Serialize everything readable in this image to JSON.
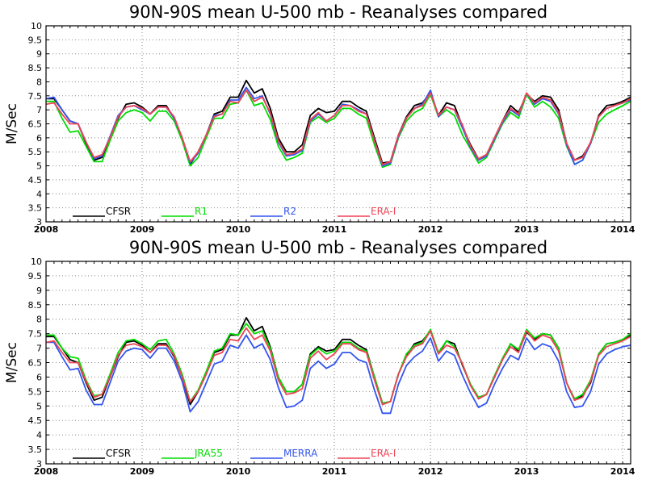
{
  "chart_data": [
    {
      "type": "line",
      "title": "90N-90S mean U-500 mb - Reanalyses compared",
      "ylabel": "M/Sec",
      "xlabel": "",
      "ylim": [
        3,
        10
      ],
      "xlim": [
        2008,
        2014.083
      ],
      "grid": true,
      "legend_placement": "bottom-left",
      "x_tick_labels": [
        "2008",
        "2009",
        "2010",
        "2011",
        "2012",
        "2013",
        "2014"
      ],
      "y_tick_labels": [
        "3",
        "3.5",
        "4",
        "4.5",
        "5",
        "5.5",
        "6",
        "6.5",
        "7",
        "7.5",
        "8",
        "8.5",
        "9",
        "9.5",
        "10"
      ],
      "x_start": "2008-01",
      "x_step": "1 month",
      "series": [
        {
          "name": "CFSR",
          "color": "#000000",
          "values": [
            7.4,
            7.4,
            7.0,
            6.6,
            6.5,
            5.8,
            5.2,
            5.3,
            6.0,
            6.7,
            7.2,
            7.25,
            7.1,
            6.85,
            7.15,
            7.15,
            6.7,
            6.0,
            5.05,
            5.5,
            6.1,
            6.85,
            6.95,
            7.45,
            7.45,
            8.05,
            7.6,
            7.75,
            7.05,
            6.0,
            5.5,
            5.5,
            5.75,
            6.8,
            7.05,
            6.9,
            6.95,
            7.3,
            7.3,
            7.1,
            6.95,
            6.0,
            5.1,
            5.15,
            6.1,
            6.75,
            7.15,
            7.25,
            7.6,
            6.8,
            7.25,
            7.15,
            6.4,
            5.75,
            5.25,
            5.4,
            6.0,
            6.6,
            7.15,
            6.9,
            7.55,
            7.3,
            7.5,
            7.45,
            7.0,
            5.8,
            5.2,
            5.35,
            5.8,
            6.8,
            7.15,
            7.2,
            7.3,
            7.45
          ]
        },
        {
          "name": "R1",
          "color": "#00dd00",
          "values": [
            7.3,
            7.3,
            6.7,
            6.2,
            6.25,
            5.7,
            5.15,
            5.15,
            5.9,
            6.6,
            6.9,
            7.0,
            6.9,
            6.6,
            6.95,
            6.95,
            6.6,
            5.9,
            5.0,
            5.3,
            6.0,
            6.7,
            6.7,
            7.2,
            7.25,
            7.7,
            7.15,
            7.25,
            6.65,
            5.7,
            5.2,
            5.3,
            5.45,
            6.55,
            6.75,
            6.55,
            6.7,
            7.05,
            7.05,
            6.85,
            6.7,
            5.75,
            4.95,
            5.05,
            6.0,
            6.6,
            6.9,
            7.05,
            7.55,
            6.75,
            7.0,
            6.8,
            6.1,
            5.6,
            5.1,
            5.3,
            5.9,
            6.5,
            6.9,
            6.7,
            7.55,
            7.1,
            7.3,
            7.1,
            6.7,
            5.7,
            5.05,
            5.2,
            5.8,
            6.55,
            6.85,
            7.0,
            7.15,
            7.3
          ]
        },
        {
          "name": "R2",
          "color": "#3355ee",
          "values": [
            7.4,
            7.45,
            7.0,
            6.6,
            6.5,
            5.85,
            5.25,
            5.35,
            6.05,
            6.8,
            7.1,
            7.15,
            7.0,
            6.85,
            7.1,
            7.1,
            6.7,
            6.0,
            5.1,
            5.45,
            6.1,
            6.8,
            6.85,
            7.35,
            7.35,
            7.8,
            7.4,
            7.5,
            6.85,
            5.85,
            5.35,
            5.4,
            5.55,
            6.6,
            6.85,
            6.6,
            6.8,
            7.2,
            7.15,
            7.0,
            6.85,
            5.9,
            5.0,
            5.1,
            6.05,
            6.7,
            7.05,
            7.2,
            7.7,
            6.75,
            7.1,
            7.0,
            6.35,
            5.65,
            5.2,
            5.35,
            5.95,
            6.55,
            7.0,
            6.8,
            7.6,
            7.2,
            7.4,
            7.3,
            6.85,
            5.75,
            5.05,
            5.2,
            5.8,
            6.75,
            7.05,
            7.15,
            7.25,
            7.35
          ]
        },
        {
          "name": "ERA-I",
          "color": "#ee4455",
          "values": [
            7.2,
            7.25,
            6.85,
            6.5,
            6.5,
            5.85,
            5.3,
            5.4,
            6.0,
            6.75,
            7.1,
            7.15,
            7.05,
            6.85,
            7.1,
            7.1,
            6.75,
            6.0,
            5.15,
            5.5,
            6.1,
            6.75,
            6.85,
            7.3,
            7.25,
            7.7,
            7.3,
            7.45,
            6.9,
            5.9,
            5.4,
            5.45,
            5.6,
            6.65,
            6.9,
            6.6,
            6.8,
            7.15,
            7.15,
            6.95,
            6.85,
            5.9,
            5.05,
            5.15,
            6.1,
            6.7,
            7.05,
            7.15,
            7.6,
            6.8,
            7.1,
            7.0,
            6.45,
            5.7,
            5.25,
            5.4,
            6.0,
            6.6,
            7.05,
            6.85,
            7.6,
            7.25,
            7.45,
            7.35,
            6.9,
            5.8,
            5.2,
            5.3,
            5.85,
            6.75,
            7.05,
            7.15,
            7.25,
            7.4
          ]
        }
      ]
    },
    {
      "type": "line",
      "title": "90N-90S mean U-500 mb - Reanalyses compared",
      "ylabel": "M/Sec",
      "xlabel": "",
      "ylim": [
        3,
        10
      ],
      "xlim": [
        2008,
        2014.083
      ],
      "grid": true,
      "legend_placement": "bottom-left",
      "x_tick_labels": [
        "2008",
        "2009",
        "2010",
        "2011",
        "2012",
        "2013",
        "2014"
      ],
      "y_tick_labels": [
        "3",
        "3.5",
        "4",
        "4.5",
        "5",
        "5.5",
        "6",
        "6.5",
        "7",
        "7.5",
        "8",
        "8.5",
        "9",
        "9.5",
        "10"
      ],
      "x_start": "2008-01",
      "x_step": "1 month",
      "series": [
        {
          "name": "CFSR",
          "color": "#000000",
          "values": [
            7.4,
            7.4,
            7.0,
            6.6,
            6.5,
            5.8,
            5.2,
            5.3,
            6.0,
            6.7,
            7.2,
            7.25,
            7.1,
            6.85,
            7.15,
            7.15,
            6.7,
            6.0,
            5.05,
            5.5,
            6.1,
            6.85,
            6.95,
            7.45,
            7.45,
            8.05,
            7.6,
            7.75,
            7.05,
            6.0,
            5.5,
            5.5,
            5.75,
            6.8,
            7.05,
            6.9,
            6.95,
            7.3,
            7.3,
            7.1,
            6.95,
            6.0,
            5.1,
            5.15,
            6.1,
            6.75,
            7.15,
            7.25,
            7.6,
            6.8,
            7.25,
            7.15,
            6.4,
            5.75,
            5.25,
            5.4,
            6.0,
            6.6,
            7.15,
            6.9,
            7.55,
            7.3,
            7.5,
            7.45,
            7.0,
            5.8,
            5.2,
            5.35,
            5.8,
            6.8,
            7.15,
            7.2,
            7.3,
            7.45
          ]
        },
        {
          "name": "JRA55",
          "color": "#00dd00",
          "values": [
            7.45,
            7.45,
            7.0,
            6.7,
            6.65,
            5.9,
            5.35,
            5.4,
            6.1,
            6.85,
            7.25,
            7.3,
            7.15,
            6.95,
            7.25,
            7.3,
            6.8,
            6.1,
            5.15,
            5.55,
            6.2,
            6.9,
            7.0,
            7.5,
            7.45,
            7.85,
            7.5,
            7.6,
            7.0,
            6.0,
            5.5,
            5.5,
            5.75,
            6.75,
            7.0,
            6.8,
            6.9,
            7.2,
            7.2,
            7.0,
            6.9,
            6.0,
            5.1,
            5.15,
            6.1,
            6.8,
            7.1,
            7.2,
            7.65,
            6.85,
            7.25,
            7.05,
            6.45,
            5.75,
            5.3,
            5.4,
            6.05,
            6.65,
            7.15,
            6.95,
            7.65,
            7.35,
            7.5,
            7.45,
            7.0,
            5.8,
            5.25,
            5.4,
            5.9,
            6.8,
            7.15,
            7.2,
            7.3,
            7.5
          ]
        },
        {
          "name": "MERRA",
          "color": "#3355ee",
          "values": [
            7.2,
            7.2,
            6.7,
            6.25,
            6.3,
            5.55,
            5.05,
            5.05,
            5.8,
            6.55,
            6.9,
            7.0,
            6.95,
            6.65,
            7.0,
            7.0,
            6.55,
            5.85,
            4.8,
            5.15,
            5.8,
            6.45,
            6.55,
            7.1,
            7.0,
            7.45,
            7.0,
            7.15,
            6.6,
            5.65,
            4.95,
            5.0,
            5.2,
            6.3,
            6.55,
            6.3,
            6.45,
            6.85,
            6.85,
            6.6,
            6.5,
            5.55,
            4.75,
            4.75,
            5.75,
            6.4,
            6.7,
            6.9,
            7.35,
            6.55,
            6.9,
            6.75,
            6.05,
            5.45,
            4.95,
            5.1,
            5.75,
            6.3,
            6.75,
            6.6,
            7.35,
            6.95,
            7.15,
            7.05,
            6.55,
            5.5,
            4.95,
            5.0,
            5.5,
            6.45,
            6.8,
            6.95,
            7.05,
            7.1
          ]
        },
        {
          "name": "ERA-I",
          "color": "#ee4455",
          "values": [
            7.2,
            7.25,
            6.85,
            6.5,
            6.5,
            5.85,
            5.3,
            5.4,
            6.0,
            6.75,
            7.1,
            7.15,
            7.05,
            6.85,
            7.1,
            7.1,
            6.75,
            6.0,
            5.15,
            5.5,
            6.1,
            6.75,
            6.85,
            7.3,
            7.25,
            7.7,
            7.3,
            7.45,
            6.9,
            5.9,
            5.4,
            5.45,
            5.6,
            6.65,
            6.9,
            6.6,
            6.8,
            7.15,
            7.15,
            6.95,
            6.85,
            5.9,
            5.05,
            5.15,
            6.1,
            6.7,
            7.05,
            7.15,
            7.6,
            6.8,
            7.1,
            7.0,
            6.45,
            5.7,
            5.25,
            5.4,
            6.0,
            6.6,
            7.05,
            6.85,
            7.6,
            7.25,
            7.45,
            7.35,
            6.9,
            5.8,
            5.2,
            5.3,
            5.85,
            6.75,
            7.05,
            7.15,
            7.25,
            7.4
          ]
        }
      ]
    }
  ]
}
